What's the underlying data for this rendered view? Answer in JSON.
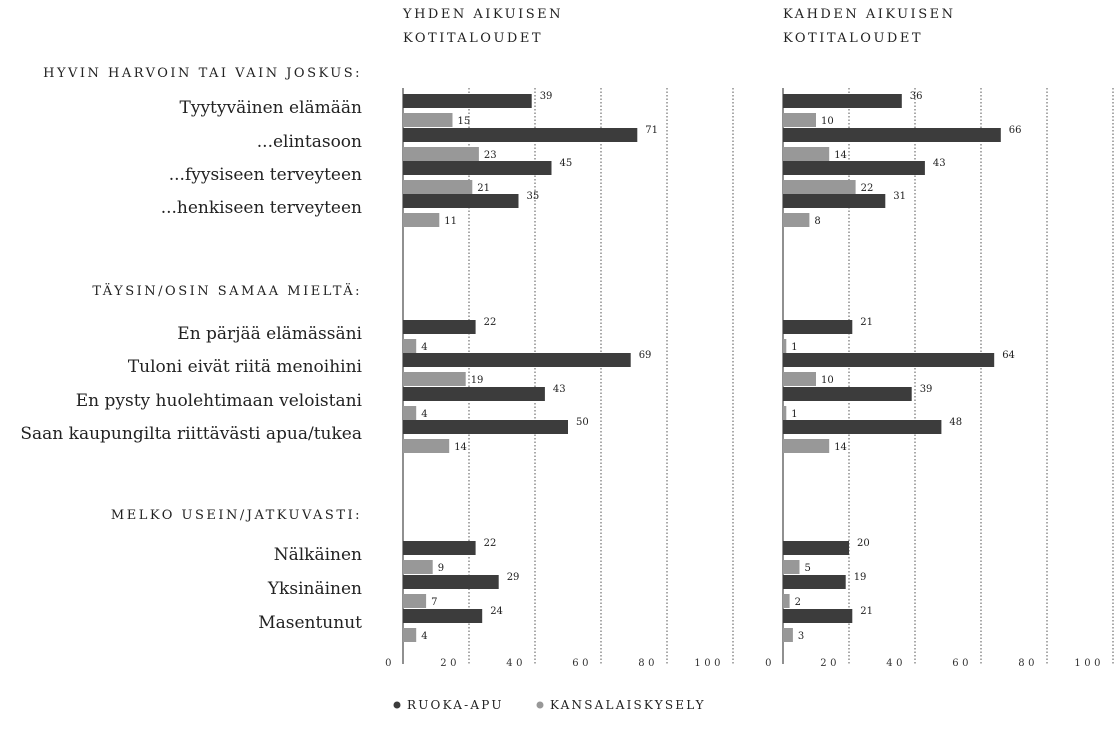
{
  "chart_data": {
    "type": "bar",
    "orientation": "horizontal",
    "xlim": [
      0,
      100
    ],
    "ticks": [
      "0",
      "20",
      "40",
      "60",
      "80",
      "100"
    ],
    "colors": {
      "ruoka_apu": "#3c3c3c",
      "kansalaiskysely": "#989898"
    },
    "legend": [
      {
        "label": "RUOKA-APU",
        "color": "#3c3c3c"
      },
      {
        "label": "KANSALAISKYSELY",
        "color": "#989898"
      }
    ],
    "panels": [
      {
        "title_line1": "YHDEN AIKUISEN",
        "title_line2": "KOTITALOUDET"
      },
      {
        "title_line1": "KAHDEN AIKUISEN",
        "title_line2": "KOTITALOUDET"
      }
    ],
    "groups": [
      {
        "label": "HYVIN HARVOIN TAI VAIN JOSKUS:",
        "items": [
          {
            "label": "Tyytyväinen elämään",
            "values": [
              [
                39,
                15
              ],
              [
                36,
                10
              ]
            ]
          },
          {
            "label": "...elintasoon",
            "values": [
              [
                71,
                23
              ],
              [
                66,
                14
              ]
            ]
          },
          {
            "label": "...fyysiseen terveyteen",
            "values": [
              [
                45,
                21
              ],
              [
                43,
                22
              ]
            ]
          },
          {
            "label": "...henkiseen terveyteen",
            "values": [
              [
                35,
                11
              ],
              [
                31,
                8
              ]
            ]
          }
        ]
      },
      {
        "label": "TÄYSIN/OSIN SAMAA MIELTÄ:",
        "items": [
          {
            "label": "En pärjää elämässäni",
            "values": [
              [
                22,
                4
              ],
              [
                21,
                1
              ]
            ]
          },
          {
            "label": "Tuloni eivät riitä menoihini",
            "values": [
              [
                69,
                19
              ],
              [
                64,
                10
              ]
            ]
          },
          {
            "label": "En pysty huolehtimaan veloistani",
            "values": [
              [
                43,
                4
              ],
              [
                39,
                1
              ]
            ]
          },
          {
            "label": "Saan kaupungilta riittävästi apua/tukea",
            "values": [
              [
                50,
                14
              ],
              [
                48,
                14
              ]
            ]
          }
        ]
      },
      {
        "label": "MELKO USEIN/JATKUVASTI:",
        "items": [
          {
            "label": "Nälkäinen",
            "values": [
              [
                22,
                9
              ],
              [
                20,
                5
              ]
            ]
          },
          {
            "label": "Yksinäinen",
            "values": [
              [
                29,
                7
              ],
              [
                19,
                2
              ]
            ]
          },
          {
            "label": "Masentunut",
            "values": [
              [
                24,
                4
              ],
              [
                21,
                3
              ]
            ]
          }
        ]
      }
    ]
  }
}
